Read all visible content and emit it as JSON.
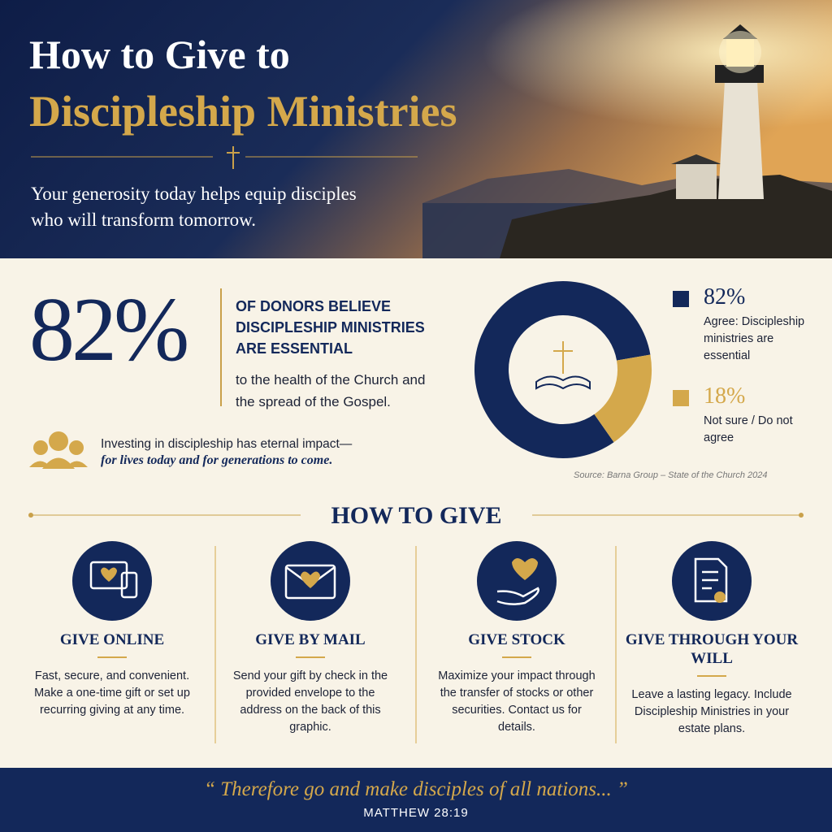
{
  "header": {
    "title_line1": "How to Give to",
    "title_line2": "Discipleship Ministries",
    "subtitle_line1": "Your generosity today helps equip disciples",
    "subtitle_line2": "who will transform tomorrow."
  },
  "stat": {
    "heading": "OF DONORS BELIEVE DISCIPLESHIP MINISTRIES ARE ESSENTIAL",
    "detail": "to the health of the Church and the spread of the Gospel."
  },
  "impact": {
    "line1": "Investing in discipleship has eternal impact—",
    "line2": "for lives today and for generations to come."
  },
  "donut": {
    "segments": [
      {
        "value": 82,
        "label": "82%",
        "description": "Agree: Discipleship ministries are essential",
        "color": "#13285a"
      },
      {
        "value": 18,
        "label": "18%",
        "description": "Not sure / Do not agree",
        "color": "#d4a84b"
      }
    ],
    "source": "Source: Barna Group – State of the Church 2024"
  },
  "how_to_give": {
    "title": "HOW TO GIVE",
    "methods": [
      {
        "title": "GIVE ONLINE",
        "text": "Fast, secure, and convenient. Make a one-time gift or set up recurring giving at any time."
      },
      {
        "title": "GIVE BY MAIL",
        "text": "Send your gift by check in the provided envelope to the address on the back of this graphic."
      },
      {
        "title": "GIVE STOCK",
        "text": "Maximize your impact through the transfer of stocks or other securities. Contact us for details."
      },
      {
        "title": "GIVE THROUGH YOUR WILL",
        "text": "Leave a lasting legacy. Include Discipleship Ministries in your estate plans."
      }
    ]
  },
  "footer": {
    "quote": "“ Therefore go and make disciples of all nations... ”",
    "reference": "MATTHEW 28:19"
  }
}
